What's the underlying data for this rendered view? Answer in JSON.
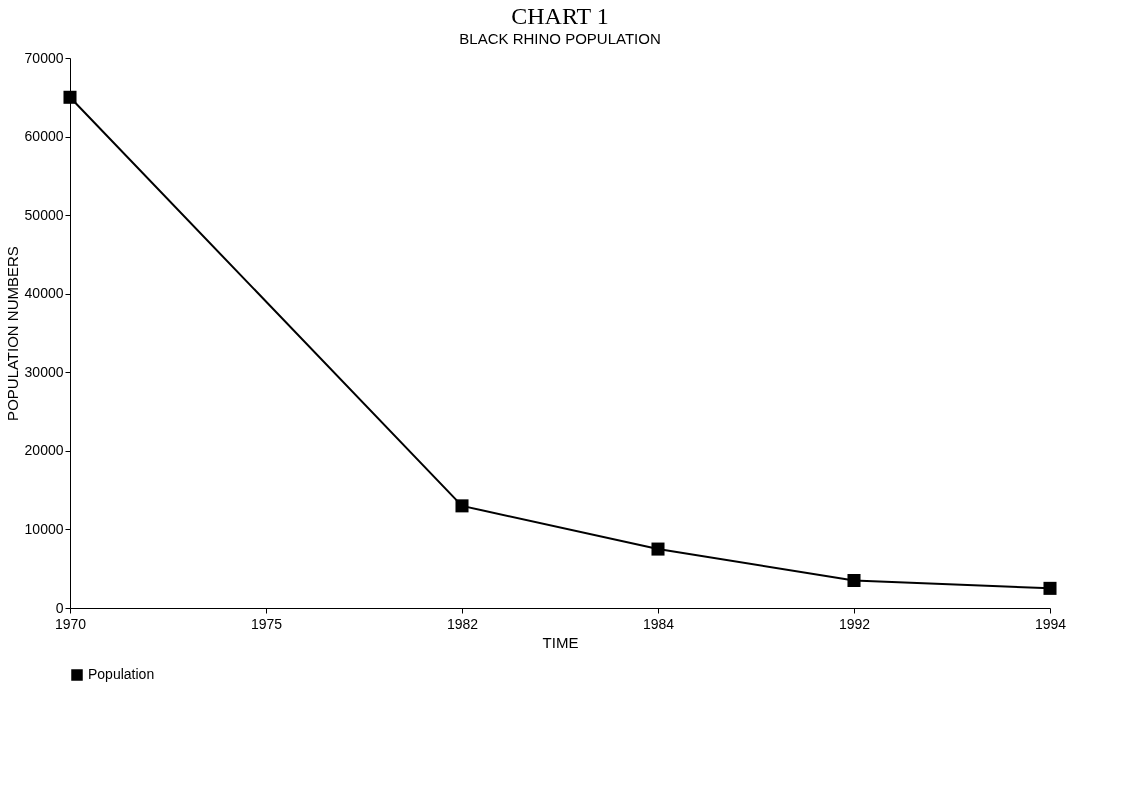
{
  "chart_data": {
    "type": "line",
    "title": "CHART 1",
    "subtitle": "BLACK RHINO POPULATION",
    "xlabel": "TIME",
    "ylabel": "POPULATION NUMBERS",
    "categories": [
      "1970",
      "1975",
      "1982",
      "1984",
      "1992",
      "1994"
    ],
    "series": [
      {
        "name": "Population",
        "color": "#000000",
        "values": [
          65000,
          null,
          13000,
          7500,
          3500,
          2500
        ]
      }
    ],
    "ylim": [
      0,
      70000
    ],
    "yticks": [
      0,
      10000,
      20000,
      30000,
      40000,
      50000,
      60000,
      70000
    ],
    "grid": false,
    "legend": "bottom",
    "marker": "square",
    "line_style": "solid"
  }
}
